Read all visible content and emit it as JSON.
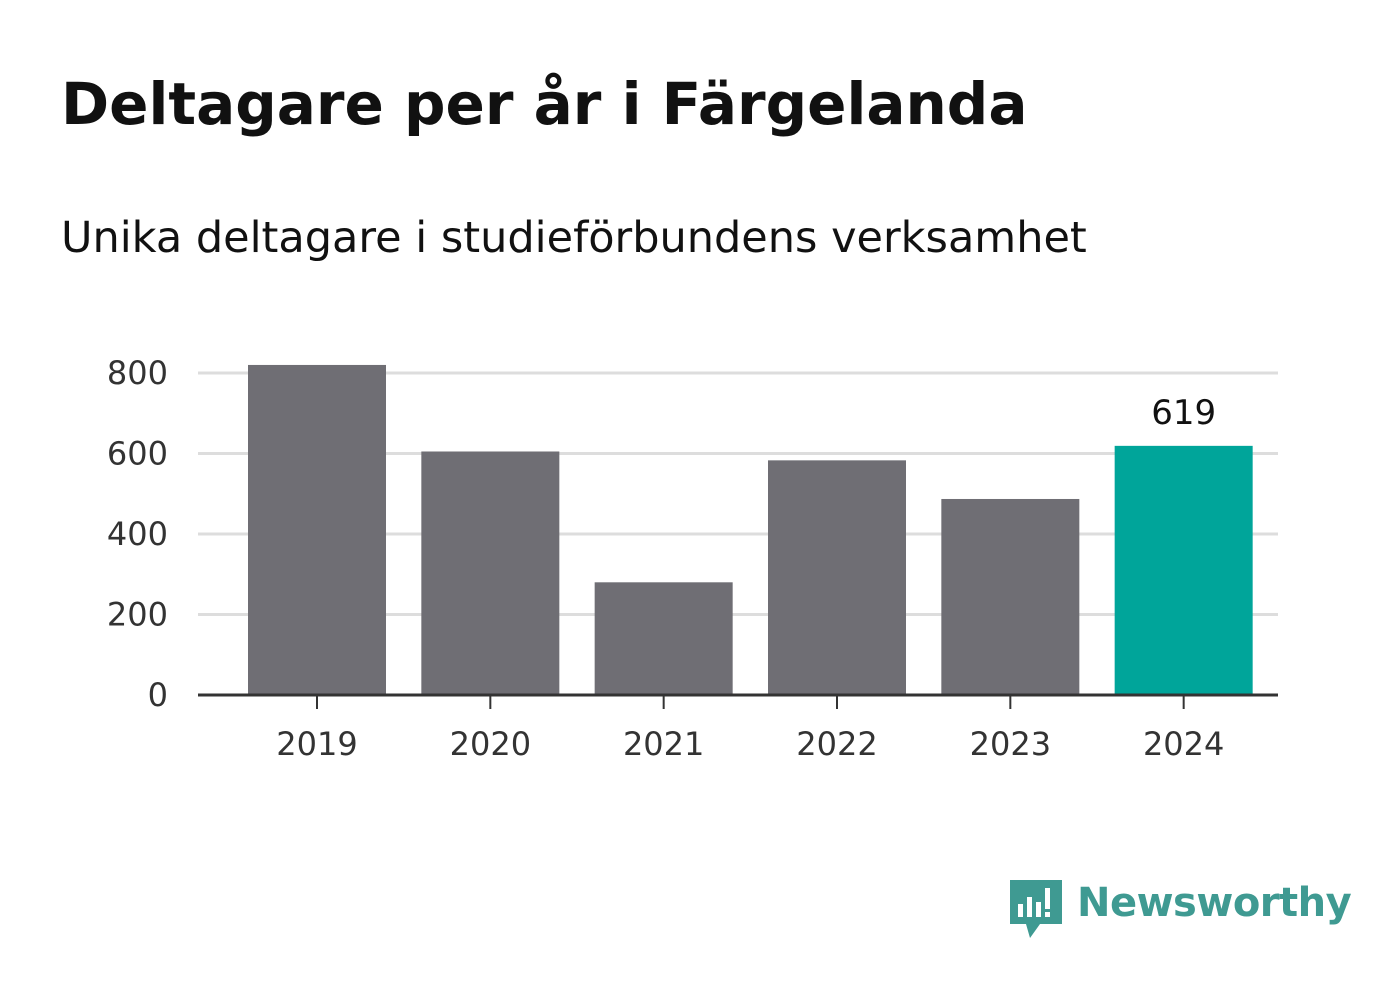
{
  "chart_data": {
    "type": "bar",
    "title": "Deltagare per år i Färgelanda",
    "subtitle": "Unika deltagare i studieförbundens verksamhet",
    "categories": [
      "2019",
      "2020",
      "2021",
      "2022",
      "2023",
      "2024"
    ],
    "values": [
      820,
      605,
      280,
      583,
      487,
      619
    ],
    "ylim": [
      0,
      800
    ],
    "yticks": [
      0,
      200,
      400,
      600,
      800
    ],
    "grid": true,
    "highlight": {
      "category": "2024",
      "label": "619"
    },
    "colors": {
      "bar": "#6f6e74",
      "highlight": "#00a59a",
      "grid": "#dddddd",
      "axis": "#333333"
    }
  },
  "brand": {
    "name": "Newsworthy",
    "icon": "newsworthy-logo-icon",
    "color": "#3f9a92"
  }
}
